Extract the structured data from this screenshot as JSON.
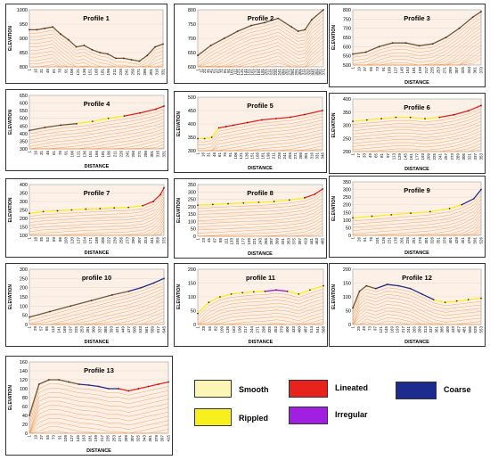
{
  "legend": [
    {
      "label": "Smooth",
      "color": "#fbf6b4"
    },
    {
      "label": "Lineated",
      "color": "#e8231c"
    },
    {
      "label": "Coarse",
      "color": "#1c2c8e"
    },
    {
      "label": "Rippled",
      "color": "#f7ef1e"
    },
    {
      "label": "Irregular",
      "color": "#a11fe0"
    }
  ],
  "chart_data": [
    {
      "type": "line",
      "title": "Profile 1",
      "xlabel": "",
      "ylabel": "ELEVATION",
      "ylim": [
        800,
        1000
      ],
      "yticks": [
        800,
        850,
        900,
        950,
        1000
      ],
      "xticks": [
        "1",
        "16",
        "31",
        "46",
        "61",
        "76",
        "91",
        "106",
        "121",
        "136",
        "151",
        "166",
        "181",
        "196",
        "211",
        "226",
        "241",
        "256",
        "271",
        "286",
        "301",
        "316",
        "331"
      ],
      "x": [
        1,
        20,
        40,
        60,
        80,
        100,
        120,
        140,
        160,
        180,
        200,
        220,
        240,
        260,
        280,
        300,
        320,
        340
      ],
      "y": [
        930,
        930,
        935,
        940,
        915,
        895,
        870,
        875,
        860,
        850,
        845,
        830,
        830,
        825,
        820,
        840,
        870,
        880
      ],
      "segments": [
        {
          "from": 0,
          "to": 17,
          "class": "Smooth"
        }
      ]
    },
    {
      "type": "line",
      "title": "Profile 2",
      "xlabel": "",
      "ylabel": "",
      "ylim": [
        600,
        800
      ],
      "yticks": [
        600,
        650,
        700,
        750,
        800
      ],
      "xticks": [
        "1",
        "11",
        "21",
        "31",
        "41",
        "51",
        "61",
        "71",
        "81",
        "91",
        "101",
        "111",
        "121",
        "131",
        "141",
        "151",
        "161",
        "171",
        "181",
        "191",
        "201",
        "211",
        "221",
        "231",
        "241",
        "251",
        "261",
        "271",
        "281",
        "291",
        "301",
        "311",
        "321",
        "331",
        "341",
        "351",
        "361",
        "371"
      ],
      "x": [
        1,
        40,
        80,
        120,
        160,
        200,
        240,
        280,
        300,
        320,
        340,
        375
      ],
      "y": [
        640,
        675,
        700,
        725,
        745,
        755,
        770,
        740,
        725,
        730,
        765,
        800
      ],
      "segments": [
        {
          "from": 0,
          "to": 11,
          "class": "Smooth"
        }
      ]
    },
    {
      "type": "line",
      "title": "Profile 3",
      "xlabel": "DISTANCE",
      "ylabel": "ELEVATION",
      "ylim": [
        500,
        800
      ],
      "yticks": [
        500,
        550,
        600,
        650,
        700,
        750,
        800
      ],
      "xticks": [
        "1",
        "19",
        "37",
        "55",
        "73",
        "91",
        "109",
        "127",
        "145",
        "163",
        "181",
        "199",
        "217",
        "235",
        "253",
        "271",
        "289",
        "307",
        "325",
        "343",
        "361",
        "379"
      ],
      "x": [
        1,
        40,
        80,
        120,
        160,
        200,
        240,
        280,
        320,
        360,
        385
      ],
      "y": [
        560,
        570,
        600,
        620,
        620,
        605,
        615,
        650,
        700,
        760,
        790
      ],
      "segments": [
        {
          "from": 0,
          "to": 10,
          "class": "Smooth"
        }
      ]
    },
    {
      "type": "line",
      "title": "Profile 4",
      "xlabel": "DISTANCE",
      "ylabel": "ELEVATION",
      "ylim": [
        300,
        650
      ],
      "yticks": [
        300,
        350,
        400,
        450,
        500,
        550,
        600,
        650
      ],
      "xticks": [
        "1",
        "16",
        "31",
        "46",
        "61",
        "76",
        "91",
        "106",
        "121",
        "136",
        "151",
        "166",
        "181",
        "196",
        "211",
        "226",
        "241",
        "256",
        "271",
        "286",
        "301",
        "316",
        "331"
      ],
      "x": [
        1,
        40,
        80,
        120,
        160,
        200,
        240,
        280,
        320,
        340
      ],
      "y": [
        420,
        440,
        455,
        465,
        480,
        500,
        515,
        535,
        560,
        580
      ],
      "segments": [
        {
          "from": 0,
          "to": 3,
          "class": "Smooth"
        },
        {
          "from": 3,
          "to": 6,
          "class": "Rippled"
        },
        {
          "from": 6,
          "to": 9,
          "class": "Lineated"
        }
      ]
    },
    {
      "type": "line",
      "title": "Profile 5",
      "xlabel": "DISTANCE",
      "ylabel": "ELEVATION",
      "ylim": [
        300,
        500
      ],
      "yticks": [
        300,
        350,
        400,
        450,
        500
      ],
      "xticks": [
        "1",
        "16",
        "31",
        "46",
        "61",
        "76",
        "91",
        "106",
        "121",
        "136",
        "151",
        "166",
        "181",
        "196",
        "211",
        "226",
        "241",
        "256",
        "271",
        "286",
        "301",
        "316",
        "331",
        "346"
      ],
      "x": [
        1,
        20,
        40,
        60,
        80,
        100,
        140,
        180,
        220,
        260,
        300,
        350
      ],
      "y": [
        345,
        345,
        350,
        385,
        390,
        395,
        405,
        415,
        420,
        425,
        435,
        450
      ],
      "segments": [
        {
          "from": 0,
          "to": 3,
          "class": "Rippled"
        },
        {
          "from": 3,
          "to": 9,
          "class": "Lineated"
        },
        {
          "from": 9,
          "to": 11,
          "class": "Lineated"
        }
      ]
    },
    {
      "type": "line",
      "title": "Profile 6",
      "xlabel": "DISTANCE",
      "ylabel": "ELEVATION",
      "ylim": [
        200,
        400
      ],
      "yticks": [
        200,
        250,
        300,
        350,
        400
      ],
      "xticks": [
        "1",
        "17",
        "33",
        "49",
        "65",
        "81",
        "97",
        "113",
        "129",
        "145",
        "161",
        "177",
        "193",
        "209",
        "225",
        "241",
        "257",
        "273",
        "289",
        "305",
        "321",
        "337",
        "353"
      ],
      "x": [
        1,
        40,
        80,
        120,
        160,
        200,
        240,
        280,
        320,
        355
      ],
      "y": [
        315,
        320,
        325,
        330,
        330,
        325,
        330,
        340,
        355,
        375
      ],
      "segments": [
        {
          "from": 0,
          "to": 6,
          "class": "Rippled"
        },
        {
          "from": 6,
          "to": 9,
          "class": "Lineated"
        }
      ]
    },
    {
      "type": "line",
      "title": "Profile 7",
      "xlabel": "DISTANCE",
      "ylabel": "ELEVATION",
      "ylim": [
        100,
        400
      ],
      "yticks": [
        100,
        150,
        200,
        250,
        300,
        350,
        400
      ],
      "xticks": [
        "1",
        "18",
        "35",
        "52",
        "69",
        "86",
        "103",
        "120",
        "137",
        "154",
        "171",
        "188",
        "205",
        "222",
        "239",
        "256",
        "273",
        "290",
        "307",
        "324",
        "341",
        "358",
        "375"
      ],
      "x": [
        1,
        40,
        80,
        120,
        160,
        200,
        240,
        280,
        320,
        350,
        370,
        380
      ],
      "y": [
        230,
        240,
        245,
        250,
        255,
        258,
        262,
        265,
        275,
        300,
        340,
        380
      ],
      "segments": [
        {
          "from": 0,
          "to": 8,
          "class": "Rippled"
        },
        {
          "from": 8,
          "to": 11,
          "class": "Lineated"
        }
      ]
    },
    {
      "type": "line",
      "title": "Profile 8",
      "xlabel": "DISTANCE",
      "ylabel": "ELEVATION",
      "ylim": [
        0,
        350
      ],
      "yticks": [
        0,
        50,
        100,
        150,
        200,
        250,
        300,
        350
      ],
      "xticks": [
        "1",
        "23",
        "45",
        "67",
        "89",
        "111",
        "133",
        "155",
        "177",
        "199",
        "221",
        "243",
        "265",
        "287",
        "309",
        "331",
        "353",
        "375",
        "397",
        "419",
        "441",
        "463",
        "485"
      ],
      "x": [
        1,
        60,
        120,
        180,
        240,
        300,
        360,
        420,
        460,
        490
      ],
      "y": [
        210,
        215,
        220,
        225,
        230,
        235,
        245,
        260,
        285,
        320
      ],
      "segments": [
        {
          "from": 0,
          "to": 7,
          "class": "Rippled"
        },
        {
          "from": 7,
          "to": 9,
          "class": "Lineated"
        }
      ]
    },
    {
      "type": "line",
      "title": "Profile 9",
      "xlabel": "DISTANCE",
      "ylabel": "ELEVATION",
      "ylim": [
        0,
        350
      ],
      "yticks": [
        0,
        50,
        100,
        150,
        200,
        250,
        300,
        350
      ],
      "xticks": [
        "1",
        "26",
        "51",
        "76",
        "101",
        "126",
        "151",
        "176",
        "201",
        "226",
        "251",
        "276",
        "301",
        "326",
        "351",
        "376",
        "401",
        "426",
        "451",
        "476",
        "501",
        "526"
      ],
      "x": [
        1,
        80,
        160,
        240,
        320,
        400,
        450,
        500,
        530
      ],
      "y": [
        115,
        125,
        135,
        145,
        155,
        175,
        200,
        240,
        300
      ],
      "segments": [
        {
          "from": 0,
          "to": 6,
          "class": "Rippled"
        },
        {
          "from": 6,
          "to": 8,
          "class": "Coarse"
        }
      ]
    },
    {
      "type": "line",
      "title": "profile 10",
      "xlabel": "DISTANCE",
      "ylabel": "ELEVATION",
      "ylim": [
        0,
        300
      ],
      "yticks": [
        0,
        50,
        100,
        150,
        200,
        250,
        300
      ],
      "xticks": [
        "1",
        "29",
        "57",
        "85",
        "113",
        "141",
        "169",
        "197",
        "225",
        "253",
        "281",
        "309",
        "337",
        "365",
        "393",
        "421",
        "449",
        "477",
        "505",
        "533",
        "561",
        "589",
        "617",
        "645"
      ],
      "x": [
        1,
        100,
        200,
        300,
        400,
        480,
        540,
        600,
        650
      ],
      "y": [
        40,
        70,
        100,
        130,
        160,
        180,
        200,
        225,
        250
      ],
      "segments": [
        {
          "from": 0,
          "to": 5,
          "class": "Smooth"
        },
        {
          "from": 5,
          "to": 8,
          "class": "Coarse"
        }
      ]
    },
    {
      "type": "line",
      "title": "profile 11",
      "xlabel": "DISTANCE",
      "ylabel": "ELEVATION",
      "ylim": [
        0,
        200
      ],
      "yticks": [
        0,
        50,
        100,
        150,
        200
      ],
      "xticks": [
        "1",
        "28",
        "55",
        "82",
        "109",
        "136",
        "163",
        "190",
        "217",
        "244",
        "271",
        "298",
        "325",
        "352",
        "379",
        "406",
        "433",
        "460",
        "487",
        "514",
        "541",
        "568"
      ],
      "x": [
        1,
        50,
        100,
        150,
        200,
        250,
        300,
        350,
        400,
        450,
        500,
        560
      ],
      "y": [
        40,
        80,
        100,
        110,
        115,
        118,
        120,
        125,
        120,
        110,
        125,
        140
      ],
      "segments": [
        {
          "from": 0,
          "to": 6,
          "class": "Rippled"
        },
        {
          "from": 6,
          "to": 8,
          "class": "Irregular"
        },
        {
          "from": 8,
          "to": 11,
          "class": "Rippled"
        }
      ]
    },
    {
      "type": "line",
      "title": "Profile 12",
      "xlabel": "DISTANCE",
      "ylabel": "ELEVATION",
      "ylim": [
        0,
        200
      ],
      "yticks": [
        0,
        50,
        100,
        150,
        200
      ],
      "xticks": [
        "1",
        "25",
        "49",
        "73",
        "97",
        "121",
        "145",
        "169",
        "193",
        "217",
        "241",
        "265",
        "289",
        "313",
        "337",
        "361",
        "385",
        "409",
        "433",
        "457",
        "481",
        "505",
        "529",
        "553"
      ],
      "x": [
        1,
        30,
        60,
        100,
        150,
        200,
        250,
        300,
        350,
        400,
        450,
        500,
        555
      ],
      "y": [
        60,
        120,
        140,
        130,
        145,
        140,
        130,
        110,
        90,
        80,
        85,
        90,
        95
      ],
      "segments": [
        {
          "from": 0,
          "to": 3,
          "class": "Smooth"
        },
        {
          "from": 3,
          "to": 8,
          "class": "Coarse"
        },
        {
          "from": 8,
          "to": 12,
          "class": "Rippled"
        }
      ]
    },
    {
      "type": "line",
      "title": "Profile 13",
      "xlabel": "DISTANCE",
      "ylabel": "ELEVATION",
      "ylim": [
        0,
        160
      ],
      "yticks": [
        0,
        20,
        40,
        60,
        80,
        100,
        120,
        140,
        160
      ],
      "xticks": [
        "1",
        "19",
        "37",
        "55",
        "73",
        "91",
        "109",
        "127",
        "145",
        "163",
        "181",
        "199",
        "217",
        "235",
        "253",
        "271",
        "289",
        "307",
        "325",
        "343",
        "361",
        "379",
        "397",
        "415"
      ],
      "x": [
        1,
        30,
        60,
        90,
        120,
        150,
        180,
        210,
        240,
        270,
        300,
        330,
        360,
        390,
        420
      ],
      "y": [
        40,
        110,
        120,
        120,
        115,
        110,
        108,
        105,
        100,
        100,
        95,
        100,
        105,
        110,
        115
      ],
      "segments": [
        {
          "from": 0,
          "to": 5,
          "class": "Smooth"
        },
        {
          "from": 5,
          "to": 9,
          "class": "Coarse"
        },
        {
          "from": 9,
          "to": 14,
          "class": "Lineated"
        }
      ]
    }
  ]
}
